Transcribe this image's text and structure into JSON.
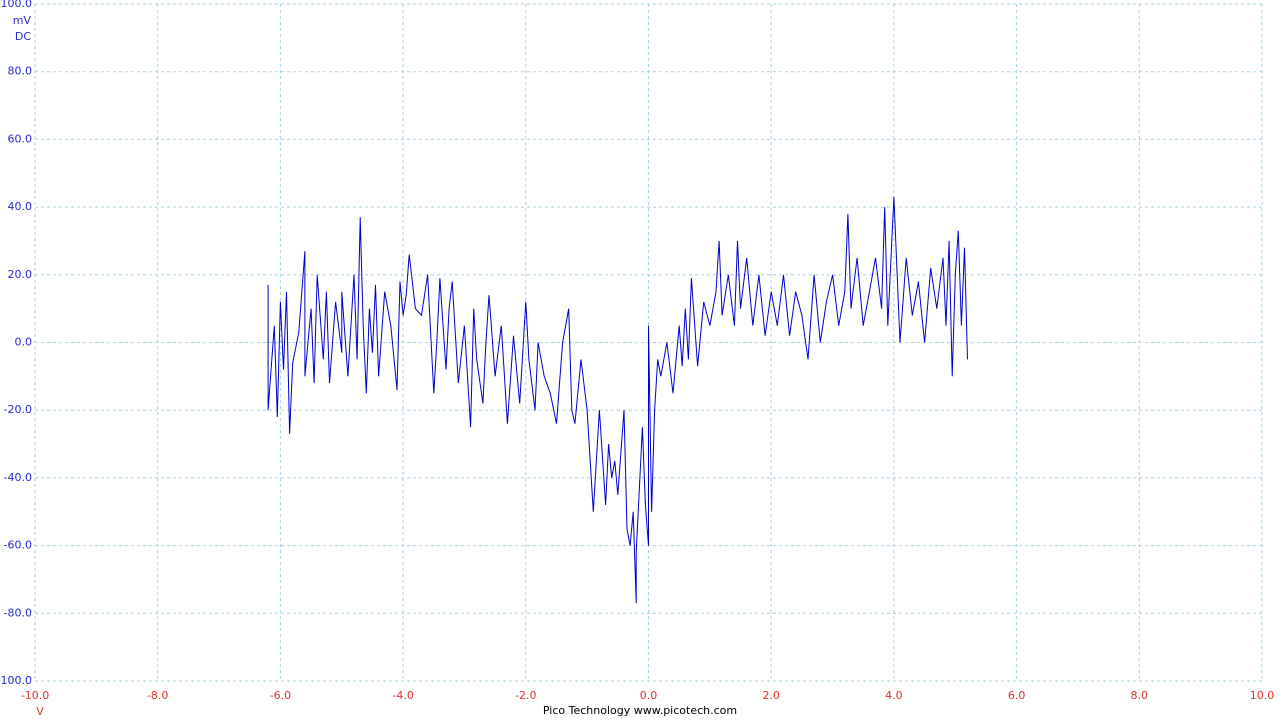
{
  "chart_data": {
    "type": "line",
    "grid": true,
    "y_unit": "mV",
    "coupling": "DC",
    "x_unit": "V",
    "credit": "Pico Technology  www.picotech.com",
    "ylim": [
      -100,
      100
    ],
    "xlim": [
      -10,
      10
    ],
    "y_label_color": "#2b2bd0",
    "x_label_color": "#e03030",
    "grid_color": "#9fd3e6",
    "yticks": [
      {
        "value": 100,
        "label": "100.0"
      },
      {
        "value": 80,
        "label": "80.0"
      },
      {
        "value": 60,
        "label": "60.0"
      },
      {
        "value": 40,
        "label": "40.0"
      },
      {
        "value": 20,
        "label": "20.0"
      },
      {
        "value": 0,
        "label": "0.0"
      },
      {
        "value": -20,
        "label": "-20.0"
      },
      {
        "value": -40,
        "label": "-40.0"
      },
      {
        "value": -60,
        "label": "-60.0"
      },
      {
        "value": -80,
        "label": "-80.0"
      },
      {
        "value": -100,
        "label": "-100.0"
      }
    ],
    "xticks": [
      {
        "value": -10,
        "label": "-10.0"
      },
      {
        "value": -8,
        "label": "-8.0"
      },
      {
        "value": -6,
        "label": "-6.0"
      },
      {
        "value": -4,
        "label": "-4.0"
      },
      {
        "value": -2,
        "label": "-2.0"
      },
      {
        "value": 0,
        "label": "0.0"
      },
      {
        "value": 2,
        "label": "2.0"
      },
      {
        "value": 4,
        "label": "4.0"
      },
      {
        "value": 6,
        "label": "6.0"
      },
      {
        "value": 8,
        "label": "8.0"
      },
      {
        "value": 10,
        "label": "10.0"
      }
    ],
    "x": [
      -6.2,
      -6.2,
      -6.1,
      -6.05,
      -6.0,
      -5.95,
      -5.9,
      -5.85,
      -5.8,
      -5.7,
      -5.6,
      -5.6,
      -5.5,
      -5.45,
      -5.4,
      -5.3,
      -5.25,
      -5.2,
      -5.1,
      -5.0,
      -5.0,
      -4.9,
      -4.8,
      -4.75,
      -4.7,
      -4.65,
      -4.6,
      -4.55,
      -4.5,
      -4.45,
      -4.4,
      -4.3,
      -4.2,
      -4.1,
      -4.05,
      -4.0,
      -3.95,
      -3.9,
      -3.8,
      -3.7,
      -3.6,
      -3.5,
      -3.45,
      -3.4,
      -3.3,
      -3.25,
      -3.2,
      -3.1,
      -3.0,
      -2.9,
      -2.85,
      -2.8,
      -2.7,
      -2.65,
      -2.6,
      -2.5,
      -2.4,
      -2.3,
      -2.2,
      -2.1,
      -2.0,
      -1.95,
      -1.85,
      -1.8,
      -1.7,
      -1.6,
      -1.5,
      -1.4,
      -1.3,
      -1.25,
      -1.2,
      -1.1,
      -1.0,
      -0.9,
      -0.8,
      -0.7,
      -0.65,
      -0.6,
      -0.55,
      -0.5,
      -0.4,
      -0.35,
      -0.3,
      -0.25,
      -0.2,
      -0.2,
      -0.1,
      -0.05,
      0.0,
      0.0,
      0.05,
      0.1,
      0.15,
      0.2,
      0.3,
      0.4,
      0.5,
      0.55,
      0.6,
      0.65,
      0.7,
      0.8,
      0.9,
      1.0,
      1.1,
      1.15,
      1.2,
      1.3,
      1.4,
      1.45,
      1.5,
      1.6,
      1.7,
      1.8,
      1.9,
      2.0,
      2.1,
      2.2,
      2.3,
      2.4,
      2.5,
      2.6,
      2.7,
      2.8,
      2.9,
      3.0,
      3.1,
      3.2,
      3.25,
      3.3,
      3.4,
      3.5,
      3.6,
      3.7,
      3.8,
      3.85,
      3.9,
      4.0,
      4.1,
      4.2,
      4.3,
      4.4,
      4.5,
      4.6,
      4.7,
      4.8,
      4.85,
      4.9,
      4.95,
      5.0,
      5.05,
      5.1,
      5.15,
      5.2
    ],
    "series": [
      {
        "color": "#0000cc",
        "values": [
          17,
          -20,
          5,
          -22,
          12,
          -8,
          15,
          -27,
          -6,
          3,
          27,
          -10,
          10,
          -12,
          20,
          -5,
          15,
          -12,
          12,
          -3,
          15,
          -10,
          20,
          -5,
          37,
          5,
          -15,
          10,
          -3,
          17,
          -10,
          15,
          5,
          -14,
          18,
          8,
          14,
          26,
          10,
          8,
          20,
          -15,
          0,
          19,
          -8,
          10,
          18,
          -12,
          5,
          -25,
          10,
          -5,
          -18,
          0,
          14,
          -10,
          5,
          -24,
          2,
          -18,
          12,
          -5,
          -20,
          0,
          -10,
          -15,
          -24,
          0,
          10,
          -20,
          -24,
          -5,
          -20,
          -50,
          -20,
          -48,
          -30,
          -40,
          -35,
          -45,
          -20,
          -55,
          -60,
          -50,
          -77,
          -62,
          -25,
          -48,
          -60,
          5,
          -50,
          -20,
          -5,
          -10,
          0,
          -15,
          5,
          -7,
          10,
          -5,
          19,
          -7,
          12,
          5,
          15,
          30,
          8,
          20,
          5,
          30,
          10,
          25,
          5,
          20,
          2,
          15,
          5,
          20,
          2,
          15,
          8,
          -5,
          20,
          0,
          12,
          20,
          5,
          15,
          38,
          10,
          25,
          5,
          15,
          25,
          10,
          40,
          5,
          43,
          0,
          25,
          8,
          18,
          0,
          22,
          10,
          25,
          5,
          30,
          -10,
          20,
          33,
          5,
          28,
          -5
        ]
      }
    ]
  }
}
